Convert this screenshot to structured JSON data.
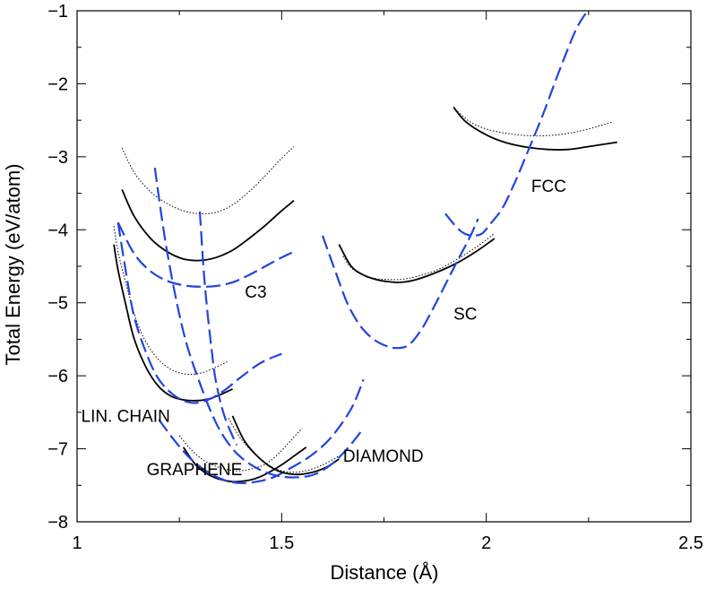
{
  "chart_data": {
    "type": "line",
    "xlabel": "Distance  (Å)",
    "ylabel": "Total Energy (eV/atom)",
    "xlim": [
      1.0,
      2.5
    ],
    "ylim": [
      -8.0,
      -1.0
    ],
    "xticks": [
      1.0,
      1.5,
      2.0,
      2.5
    ],
    "xtick_labels": [
      "1",
      "1.5",
      "2",
      "2.5"
    ],
    "yticks": [
      -8,
      -7,
      -6,
      -5,
      -4,
      -3,
      -2,
      -1
    ],
    "ytick_labels": [
      "−8",
      "−7",
      "−6",
      "−5",
      "−4",
      "−3",
      "−2",
      "−1"
    ],
    "annotations": [
      {
        "id": "lin-chain",
        "text": "LIN. CHAIN",
        "x": 1.01,
        "y": -6.63
      },
      {
        "id": "c3",
        "text": "C3",
        "x": 1.41,
        "y": -4.93
      },
      {
        "id": "graphene",
        "text": "GRAPHENE",
        "x": 1.17,
        "y": -7.36
      },
      {
        "id": "diamond",
        "text": "DIAMOND",
        "x": 1.65,
        "y": -7.18
      },
      {
        "id": "sc",
        "text": "SC",
        "x": 1.92,
        "y": -5.23
      },
      {
        "id": "fcc",
        "text": "FCC",
        "x": 2.11,
        "y": -3.48
      }
    ],
    "series": [
      {
        "name": "C3 dotted",
        "style": "dotted",
        "color": "#000000",
        "x": [
          1.11,
          1.14,
          1.18,
          1.22,
          1.26,
          1.3,
          1.34,
          1.38,
          1.42,
          1.46,
          1.5,
          1.53
        ],
        "y": [
          -2.88,
          -3.22,
          -3.48,
          -3.64,
          -3.74,
          -3.78,
          -3.76,
          -3.66,
          -3.48,
          -3.26,
          -3.02,
          -2.86
        ]
      },
      {
        "name": "C3 solid",
        "style": "solid",
        "color": "#000000",
        "x": [
          1.11,
          1.14,
          1.18,
          1.22,
          1.26,
          1.3,
          1.34,
          1.38,
          1.42,
          1.46,
          1.5,
          1.53
        ],
        "y": [
          -3.45,
          -3.82,
          -4.12,
          -4.3,
          -4.4,
          -4.42,
          -4.38,
          -4.28,
          -4.12,
          -3.94,
          -3.74,
          -3.6
        ]
      },
      {
        "name": "C3 dashed",
        "style": "dashed",
        "color": "#2244dd",
        "x": [
          1.1,
          1.14,
          1.18,
          1.22,
          1.26,
          1.3,
          1.34,
          1.38,
          1.42,
          1.46,
          1.5,
          1.53
        ],
        "y": [
          -3.9,
          -4.33,
          -4.57,
          -4.7,
          -4.76,
          -4.78,
          -4.77,
          -4.72,
          -4.62,
          -4.5,
          -4.38,
          -4.3
        ]
      },
      {
        "name": "Linear chain dotted",
        "style": "dotted",
        "color": "#000000",
        "x": [
          1.09,
          1.1,
          1.12,
          1.14,
          1.16,
          1.19,
          1.22,
          1.25,
          1.28,
          1.31,
          1.34,
          1.37
        ],
        "y": [
          -3.95,
          -4.3,
          -4.75,
          -5.15,
          -5.45,
          -5.72,
          -5.88,
          -5.96,
          -5.98,
          -5.95,
          -5.88,
          -5.8
        ]
      },
      {
        "name": "Linear chain solid",
        "style": "solid",
        "color": "#000000",
        "x": [
          1.09,
          1.1,
          1.12,
          1.14,
          1.17,
          1.2,
          1.23,
          1.26,
          1.29,
          1.32,
          1.35,
          1.38
        ],
        "y": [
          -4.2,
          -4.55,
          -5.05,
          -5.5,
          -5.9,
          -6.15,
          -6.28,
          -6.33,
          -6.34,
          -6.32,
          -6.26,
          -6.18
        ]
      },
      {
        "name": "Linear chain dashed",
        "style": "dashed",
        "color": "#2244dd",
        "x": [
          1.1,
          1.12,
          1.14,
          1.17,
          1.2,
          1.24,
          1.28,
          1.32,
          1.36,
          1.4,
          1.45,
          1.5
        ],
        "y": [
          -3.9,
          -4.6,
          -5.2,
          -5.7,
          -6.05,
          -6.28,
          -6.37,
          -6.33,
          -6.2,
          -6.02,
          -5.82,
          -5.7
        ]
      },
      {
        "name": "Graphene dotted",
        "style": "dotted",
        "color": "#000000",
        "x": [
          1.25,
          1.28,
          1.31,
          1.34,
          1.37,
          1.4,
          1.43,
          1.46,
          1.49,
          1.52,
          1.55
        ],
        "y": [
          -6.82,
          -7.02,
          -7.16,
          -7.24,
          -7.29,
          -7.3,
          -7.27,
          -7.21,
          -7.08,
          -6.9,
          -6.72
        ]
      },
      {
        "name": "Graphene solid",
        "style": "solid",
        "color": "#000000",
        "x": [
          1.26,
          1.29,
          1.32,
          1.35,
          1.38,
          1.41,
          1.44,
          1.47,
          1.5,
          1.53,
          1.56
        ],
        "y": [
          -6.98,
          -7.22,
          -7.35,
          -7.42,
          -7.45,
          -7.44,
          -7.4,
          -7.32,
          -7.22,
          -7.1,
          -6.98
        ]
      },
      {
        "name": "Graphene dashed",
        "style": "dashed",
        "color": "#2244dd",
        "x": [
          1.2,
          1.24,
          1.28,
          1.32,
          1.36,
          1.4,
          1.44,
          1.48,
          1.52,
          1.57,
          1.62,
          1.67,
          1.7
        ],
        "y": [
          -6.6,
          -6.9,
          -7.15,
          -7.32,
          -7.43,
          -7.47,
          -7.45,
          -7.39,
          -7.27,
          -7.1,
          -6.85,
          -6.45,
          -6.05
        ]
      },
      {
        "name": "Diamond dotted",
        "style": "dotted",
        "color": "#000000",
        "x": [
          1.37,
          1.4,
          1.44,
          1.48,
          1.52,
          1.56,
          1.6,
          1.64
        ],
        "y": [
          -6.58,
          -6.86,
          -7.1,
          -7.26,
          -7.32,
          -7.3,
          -7.22,
          -7.1
        ]
      },
      {
        "name": "Diamond solid",
        "style": "solid",
        "color": "#000000",
        "x": [
          1.38,
          1.41,
          1.45,
          1.49,
          1.53,
          1.57,
          1.61,
          1.64
        ],
        "y": [
          -6.55,
          -6.9,
          -7.15,
          -7.3,
          -7.35,
          -7.33,
          -7.25,
          -7.14
        ]
      },
      {
        "name": "Diamond dashed",
        "style": "dashed",
        "color": "#2244dd",
        "x": [
          1.19,
          1.22,
          1.26,
          1.3,
          1.34,
          1.38,
          1.42,
          1.46,
          1.5,
          1.54,
          1.58,
          1.62,
          1.66,
          1.7
        ],
        "y": [
          -3.15,
          -4.3,
          -5.4,
          -6.1,
          -6.65,
          -7.0,
          -7.2,
          -7.32,
          -7.38,
          -7.39,
          -7.35,
          -7.22,
          -7.0,
          -6.72
        ]
      },
      {
        "name": "Linear chain steep dashed",
        "style": "dashed",
        "color": "#2244dd",
        "x": [
          1.3,
          1.31,
          1.32,
          1.33,
          1.34,
          1.36,
          1.39
        ],
        "y": [
          -3.75,
          -4.6,
          -5.2,
          -5.7,
          -6.1,
          -6.55,
          -6.95
        ]
      },
      {
        "name": "SC dotted",
        "style": "dotted",
        "color": "#000000",
        "x": [
          1.65,
          1.67,
          1.7,
          1.73,
          1.76,
          1.79,
          1.83,
          1.88,
          1.93,
          1.98,
          2.02
        ],
        "y": [
          -4.36,
          -4.52,
          -4.62,
          -4.67,
          -4.68,
          -4.68,
          -4.64,
          -4.55,
          -4.4,
          -4.22,
          -4.05
        ]
      },
      {
        "name": "SC solid",
        "style": "solid",
        "color": "#000000",
        "x": [
          1.64,
          1.67,
          1.7,
          1.73,
          1.76,
          1.79,
          1.83,
          1.88,
          1.93,
          1.98,
          2.02
        ],
        "y": [
          -4.2,
          -4.5,
          -4.62,
          -4.68,
          -4.71,
          -4.72,
          -4.68,
          -4.58,
          -4.45,
          -4.28,
          -4.12
        ]
      },
      {
        "name": "SC dashed",
        "style": "dashed",
        "color": "#2244dd",
        "x": [
          1.6,
          1.63,
          1.66,
          1.69,
          1.72,
          1.75,
          1.78,
          1.81,
          1.84,
          1.87,
          1.9,
          1.93,
          1.96,
          1.98
        ],
        "y": [
          -4.08,
          -4.55,
          -5.0,
          -5.3,
          -5.48,
          -5.58,
          -5.62,
          -5.58,
          -5.38,
          -5.08,
          -4.75,
          -4.42,
          -4.1,
          -3.85
        ]
      },
      {
        "name": "FCC dotted",
        "style": "dotted",
        "color": "#000000",
        "x": [
          1.93,
          1.96,
          2.0,
          2.05,
          2.1,
          2.15,
          2.2,
          2.25,
          2.31
        ],
        "y": [
          -2.38,
          -2.52,
          -2.62,
          -2.68,
          -2.71,
          -2.71,
          -2.68,
          -2.62,
          -2.52
        ]
      },
      {
        "name": "FCC solid",
        "style": "solid",
        "color": "#000000",
        "x": [
          1.92,
          1.95,
          2.0,
          2.05,
          2.1,
          2.15,
          2.2,
          2.25,
          2.32
        ],
        "y": [
          -2.32,
          -2.52,
          -2.7,
          -2.81,
          -2.87,
          -2.9,
          -2.9,
          -2.86,
          -2.8
        ]
      },
      {
        "name": "FCC dashed",
        "style": "dashed",
        "color": "#2244dd",
        "x": [
          1.9,
          1.93,
          1.95,
          1.97,
          1.99,
          2.01,
          2.04,
          2.07,
          2.1,
          2.14,
          2.18,
          2.22,
          2.25
        ],
        "y": [
          -3.78,
          -3.98,
          -4.06,
          -4.08,
          -4.05,
          -3.92,
          -3.7,
          -3.35,
          -2.95,
          -2.4,
          -1.8,
          -1.25,
          -0.98
        ]
      }
    ]
  }
}
